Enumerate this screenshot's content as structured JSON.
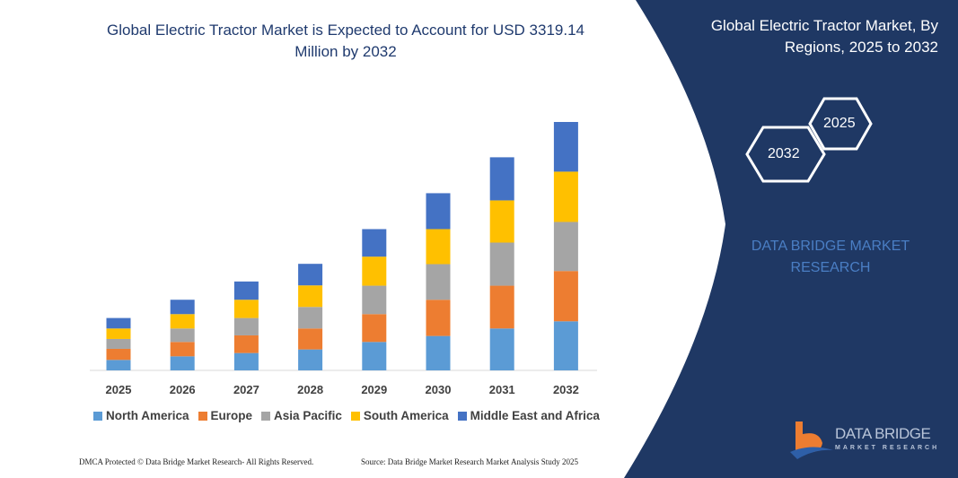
{
  "title": "Global Electric Tractor Market is Expected to Account for USD 3319.14 Million by 2032",
  "right_panel": {
    "title": "Global Electric Tractor Market, By Regions, 2025 to 2032",
    "hex_2025": "2025",
    "hex_2032": "2032",
    "brand": "DATA BRIDGE MARKET RESEARCH",
    "logo_text": "DATA BRIDGE",
    "logo_sub": "MARKET RESEARCH",
    "background": "#1f3864"
  },
  "footer": {
    "left": "DMCA Protected © Data Bridge Market Research- All Rights Reserved.",
    "right": "Source: Data Bridge Market Research Market Analysis Study 2025"
  },
  "chart_data": {
    "type": "bar",
    "stacked": true,
    "title": "Global Electric Tractor Market is Expected to Account for USD 3319.14 Million by 2032",
    "xlabel": "",
    "ylabel": "",
    "ylim": [
      0,
      3320
    ],
    "grid": false,
    "legend_position": "bottom",
    "categories": [
      "2025",
      "2026",
      "2027",
      "2028",
      "2029",
      "2030",
      "2031",
      "2032"
    ],
    "series": [
      {
        "name": "North America",
        "color": "#5b9bd5",
        "values": [
          140,
          188,
          232,
          280,
          380,
          460,
          560,
          656
        ]
      },
      {
        "name": "Europe",
        "color": "#ed7d31",
        "values": [
          148,
          192,
          236,
          280,
          372,
          484,
          572,
          672
        ]
      },
      {
        "name": "Asia Pacific",
        "color": "#a5a5a5",
        "values": [
          132,
          180,
          232,
          288,
          380,
          476,
          576,
          656
        ]
      },
      {
        "name": "South America",
        "color": "#ffc000",
        "values": [
          140,
          192,
          244,
          288,
          388,
          468,
          564,
          672
        ]
      },
      {
        "name": "Middle East and Africa",
        "color": "#4472c4",
        "values": [
          140,
          192,
          244,
          288,
          368,
          480,
          576,
          664
        ]
      }
    ]
  }
}
